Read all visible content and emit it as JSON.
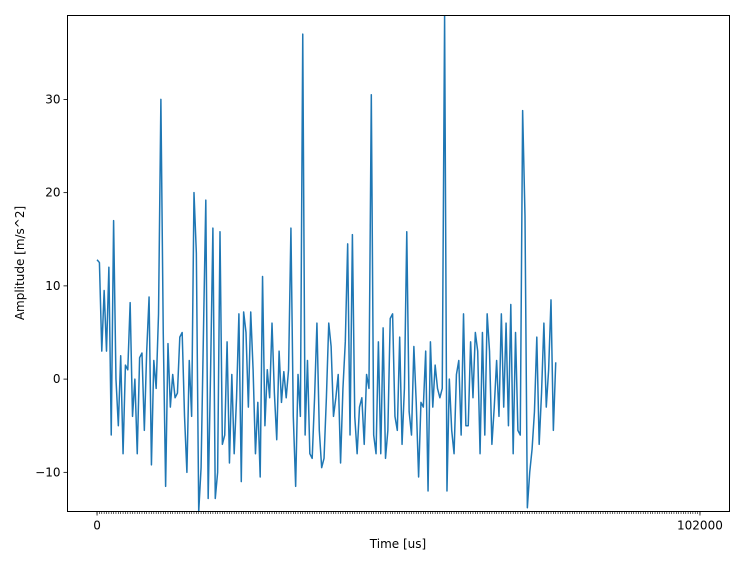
{
  "chart_data": {
    "type": "line",
    "title": "",
    "xlabel": "Time [us]",
    "ylabel": "Amplitude [m/s^2]",
    "xlim": [
      -5000,
      107000
    ],
    "ylim": [
      -14.2,
      39
    ],
    "x_ticks": [
      0,
      102000
    ],
    "x_tick_labels": [
      "0",
      "102000"
    ],
    "minor_x_ticks": {
      "start": 0,
      "step": 400,
      "count": 256
    },
    "y_ticks": [
      -10,
      0,
      10,
      20,
      30
    ],
    "y_tick_labels": [
      "−10",
      "0",
      "10",
      "20",
      "30"
    ],
    "grid": false,
    "legend": "none",
    "line_color": "#1f77b4",
    "series": [
      {
        "x_start": 0,
        "x_step": 400,
        "values": [
          12.8,
          12.5,
          3.0,
          9.5,
          3.0,
          12.0,
          -6.0,
          17.0,
          0.0,
          -5.0,
          2.5,
          -8.0,
          1.5,
          1.0,
          8.2,
          -4.0,
          0.0,
          -8.0,
          2.3,
          2.8,
          -5.5,
          3.0,
          8.8,
          -9.2,
          2.0,
          -1.0,
          7.0,
          30.0,
          5.0,
          -11.5,
          3.8,
          -3.0,
          0.5,
          -2.0,
          -1.5,
          4.5,
          5.0,
          -4.0,
          -10.0,
          2.0,
          -4.0,
          20.0,
          13.5,
          -14.2,
          -9.5,
          5.0,
          19.2,
          -12.8,
          0.5,
          16.2,
          -12.8,
          -10.0,
          15.8,
          -7.0,
          -6.0,
          4.0,
          -9.0,
          0.5,
          -8.0,
          -2.0,
          7.0,
          -11.0,
          7.2,
          5.0,
          -3.0,
          7.2,
          1.0,
          -8.0,
          -2.5,
          -10.5,
          11.0,
          -5.0,
          1.0,
          -2.0,
          6.0,
          -1.5,
          -6.5,
          3.0,
          -2.5,
          0.8,
          -2.0,
          1.0,
          16.2,
          -4.0,
          -11.5,
          0.5,
          -4.0,
          37.0,
          -6.0,
          2.0,
          -8.0,
          -8.5,
          -2.0,
          6.0,
          -5.5,
          -9.5,
          -8.5,
          -2.0,
          6.0,
          3.5,
          -4.0,
          -2.0,
          0.5,
          -9.0,
          -1.0,
          4.0,
          14.5,
          -6.0,
          15.5,
          -4.0,
          -8.0,
          -3.0,
          -2.0,
          -7.0,
          0.5,
          -1.0,
          30.5,
          -6.0,
          -8.0,
          4.0,
          -8.0,
          5.5,
          -8.5,
          -5.5,
          6.5,
          7.0,
          -4.0,
          -5.5,
          4.5,
          -7.0,
          -1.0,
          15.8,
          -3.5,
          -6.0,
          3.5,
          -2.5,
          -10.5,
          -2.5,
          -3.0,
          3.0,
          -12.0,
          4.0,
          -3.0,
          1.5,
          -1.0,
          -2.0,
          -1.0,
          39.0,
          -12.0,
          0.0,
          -5.5,
          -8.0,
          0.5,
          2.0,
          -6.0,
          7.0,
          -5.0,
          -5.0,
          4.0,
          -2.0,
          5.0,
          3.0,
          -8.0,
          5.0,
          -6.0,
          7.0,
          3.0,
          -7.0,
          -3.0,
          2.0,
          -4.0,
          7.0,
          -3.0,
          6.0,
          -5.0,
          8.0,
          -8.0,
          5.0,
          -5.5,
          -6.0,
          28.8,
          17.5,
          -13.8,
          -10.0,
          -7.5,
          -3.5,
          4.5,
          -7.0,
          -1.5,
          6.0,
          -3.0,
          1.0,
          8.5,
          -5.5,
          1.8
        ]
      }
    ]
  }
}
